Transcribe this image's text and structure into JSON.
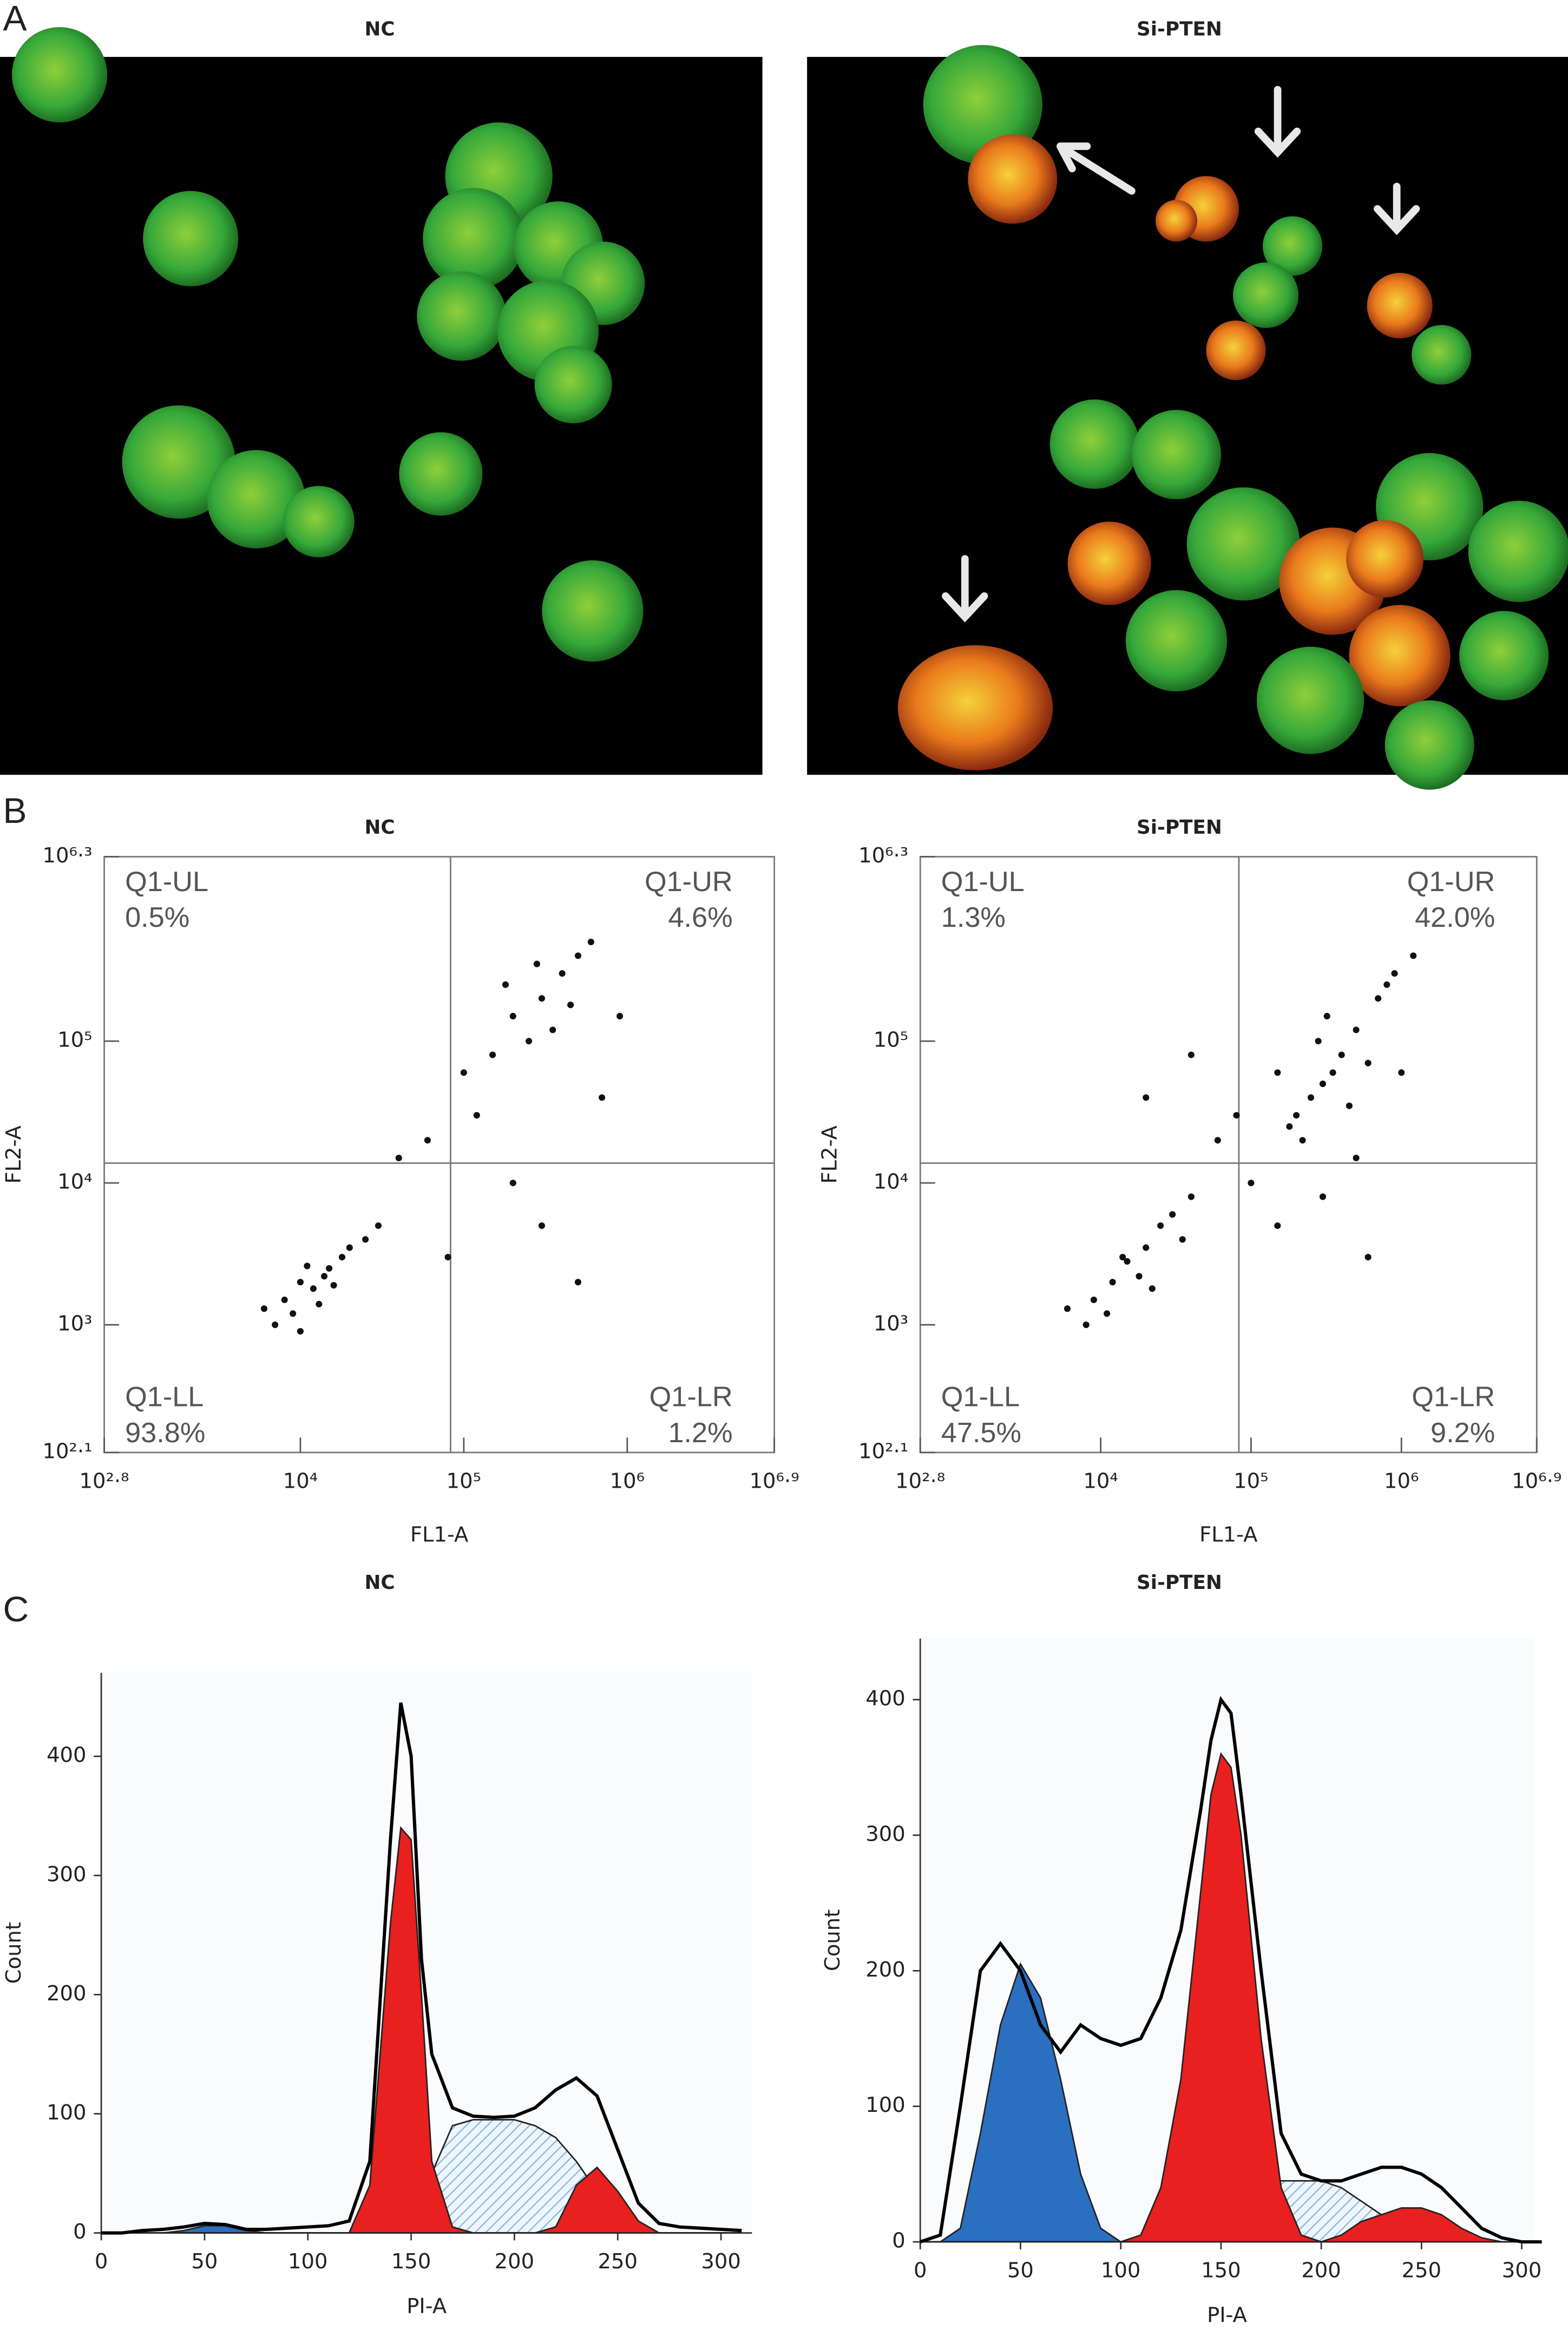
{
  "panel_labels": [
    "A",
    "B",
    "C"
  ],
  "panel_a_titles": [
    "NC",
    "Si-PTEN"
  ],
  "chart_data": [
    {
      "type": "scatter",
      "title": "NC",
      "x_label": "FL1-A",
      "y_label": "FL2-A",
      "log_scale": true,
      "color": "#111111",
      "xlim": [
        630.96,
        7943282
      ],
      "ylim": [
        125.89,
        1995262
      ],
      "xticks": [
        {
          "value": 630.96,
          "label": "10²·⁸"
        },
        {
          "value": 10000,
          "label": "10⁴"
        },
        {
          "value": 100000,
          "label": "10⁵"
        },
        {
          "value": 1000000,
          "label": "10⁶"
        },
        {
          "value": 7943282,
          "label": "10⁶·⁹"
        }
      ],
      "yticks": [
        {
          "value": 125.89,
          "label": "10²·¹"
        },
        {
          "value": 1000,
          "label": "10³"
        },
        {
          "value": 10000,
          "label": "10⁴"
        },
        {
          "value": 100000,
          "label": "10⁵"
        },
        {
          "value": 1995262,
          "label": "10⁶·³"
        }
      ],
      "gates": {
        "x": 83000,
        "y": 13800
      },
      "quadrants": {
        "names": [
          "Q1-UL",
          "Q1-UR",
          "Q1-LL",
          "Q1-LR"
        ],
        "values": [
          0.5,
          4.6,
          93.8,
          1.2
        ],
        "value_labels": [
          "0.5%",
          "4.6%",
          "93.8%",
          "1.2%"
        ]
      },
      "x": [
        8000,
        10000,
        12000,
        15000,
        9000,
        13000,
        11000,
        18000,
        7000,
        20000,
        14000,
        16000,
        6000,
        25000,
        10000,
        30000,
        200000,
        300000,
        400000,
        250000,
        500000,
        150000,
        350000,
        600000,
        180000,
        450000,
        100000,
        280000,
        60000,
        80000,
        300000,
        500000,
        40000,
        120000,
        700000,
        200000,
        900000
      ],
      "values": [
        1500,
        2000,
        1800,
        2500,
        1200,
        1400,
        2600,
        3000,
        1000,
        3500,
        2200,
        1900,
        1300,
        4000,
        900,
        5000,
        150000,
        200000,
        300000,
        100000,
        400000,
        80000,
        120000,
        500000,
        250000,
        180000,
        60000,
        350000,
        20000,
        3000,
        5000,
        2000,
        15000,
        30000,
        40000,
        10000,
        150000
      ]
    },
    {
      "type": "scatter",
      "title": "Si-PTEN",
      "x_label": "FL1-A",
      "y_label": "FL2-A",
      "log_scale": true,
      "color": "#111111",
      "xlim": [
        630.96,
        7943282
      ],
      "ylim": [
        125.89,
        1995262
      ],
      "xticks": [
        {
          "value": 630.96,
          "label": "10²·⁸"
        },
        {
          "value": 10000,
          "label": "10⁴"
        },
        {
          "value": 100000,
          "label": "10⁵"
        },
        {
          "value": 1000000,
          "label": "10⁶"
        },
        {
          "value": 7943282,
          "label": "10⁶·⁹"
        }
      ],
      "yticks": [
        {
          "value": 125.89,
          "label": "10²·¹"
        },
        {
          "value": 1000,
          "label": "10³"
        },
        {
          "value": 10000,
          "label": "10⁴"
        },
        {
          "value": 100000,
          "label": "10⁵"
        },
        {
          "value": 1995262,
          "label": "10⁶·³"
        }
      ],
      "gates": {
        "x": 83000,
        "y": 13800
      },
      "quadrants": {
        "names": [
          "Q1-UL",
          "Q1-UR",
          "Q1-LL",
          "Q1-LR"
        ],
        "values": [
          1.3,
          42.0,
          47.5,
          9.2
        ],
        "value_labels": [
          "1.3%",
          "42.0%",
          "47.5%",
          "9.2%"
        ]
      },
      "x": [
        9000,
        12000,
        15000,
        20000,
        8000,
        25000,
        30000,
        11000,
        18000,
        40000,
        6000,
        14000,
        35000,
        22000,
        200000,
        250000,
        300000,
        350000,
        180000,
        400000,
        500000,
        700000,
        900000,
        1200000,
        280000,
        150000,
        220000,
        450000,
        600000,
        320000,
        800000,
        60000,
        100000,
        300000,
        600000,
        40000,
        1000000,
        150000,
        80000,
        500000,
        20000
      ],
      "values": [
        1500,
        2000,
        2800,
        3500,
        1000,
        5000,
        6000,
        1200,
        2200,
        8000,
        1300,
        3000,
        4000,
        1800,
        30000,
        40000,
        50000,
        60000,
        25000,
        80000,
        120000,
        200000,
        300000,
        400000,
        100000,
        60000,
        20000,
        35000,
        70000,
        150000,
        250000,
        20000,
        10000,
        8000,
        3000,
        80000,
        60000,
        5000,
        30000,
        15000,
        40000
      ]
    },
    {
      "type": "histogram",
      "title": "NC",
      "x_label": "PI-A",
      "y_label": "Count",
      "xlim": [
        0,
        315
      ],
      "ylim": [
        0,
        470
      ],
      "xticks": [
        0,
        50,
        100,
        150,
        200,
        250,
        300
      ],
      "yticks": [
        0,
        100,
        200,
        300,
        400
      ],
      "x": [
        0,
        10,
        20,
        30,
        40,
        50,
        60,
        70,
        80,
        90,
        100,
        110,
        120,
        130,
        140,
        145,
        150,
        155,
        160,
        170,
        180,
        190,
        200,
        210,
        220,
        230,
        240,
        250,
        260,
        270,
        280,
        290,
        300,
        310
      ],
      "series": [
        {
          "kind": "hatch",
          "color": "#7fb2de",
          "values": [
            0,
            0,
            0,
            0,
            0,
            0,
            0,
            0,
            0,
            0,
            0,
            0,
            0,
            0,
            0,
            0,
            0,
            20,
            50,
            90,
            95,
            95,
            95,
            90,
            80,
            60,
            35,
            10,
            0,
            0,
            0,
            0,
            0,
            0
          ]
        },
        {
          "kind": "fill",
          "color": "#2a6fc0",
          "values": [
            0,
            0,
            0,
            0,
            2,
            6,
            6,
            2,
            0,
            0,
            0,
            0,
            0,
            0,
            0,
            0,
            0,
            0,
            0,
            0,
            0,
            0,
            0,
            0,
            0,
            0,
            0,
            0,
            0,
            0,
            0,
            0,
            0,
            0
          ]
        },
        {
          "kind": "fill",
          "color": "#e8201f",
          "values": [
            0,
            0,
            0,
            0,
            0,
            0,
            0,
            0,
            0,
            0,
            0,
            0,
            0,
            40,
            260,
            340,
            330,
            200,
            60,
            5,
            0,
            0,
            0,
            0,
            0,
            0,
            0,
            0,
            0,
            0,
            0,
            0,
            0,
            0
          ]
        },
        {
          "kind": "fill",
          "color": "#e8201f",
          "values": [
            0,
            0,
            0,
            0,
            0,
            0,
            0,
            0,
            0,
            0,
            0,
            0,
            0,
            0,
            0,
            0,
            0,
            0,
            0,
            0,
            0,
            0,
            0,
            0,
            5,
            40,
            55,
            35,
            10,
            0,
            0,
            0,
            0,
            0
          ]
        },
        {
          "kind": "line",
          "color": "#000000",
          "values": [
            0,
            0,
            2,
            3,
            5,
            8,
            7,
            3,
            3,
            4,
            5,
            6,
            10,
            60,
            330,
            445,
            400,
            230,
            150,
            105,
            98,
            97,
            98,
            105,
            120,
            130,
            115,
            70,
            25,
            8,
            5,
            4,
            3,
            2
          ]
        }
      ]
    },
    {
      "type": "histogram",
      "title": "Si-PTEN",
      "x_label": "PI-A",
      "y_label": "Count",
      "xlim": [
        0,
        306
      ],
      "ylim": [
        0,
        445
      ],
      "xticks": [
        0,
        50,
        100,
        150,
        200,
        250,
        300
      ],
      "yticks": [
        0,
        100,
        200,
        300,
        400
      ],
      "x": [
        0,
        10,
        20,
        30,
        40,
        50,
        60,
        70,
        80,
        90,
        100,
        110,
        120,
        130,
        140,
        145,
        150,
        155,
        160,
        170,
        180,
        190,
        200,
        210,
        220,
        230,
        240,
        250,
        260,
        270,
        280,
        290,
        300,
        310
      ],
      "series": [
        {
          "kind": "hatch",
          "color": "#7fb2de",
          "values": [
            0,
            0,
            0,
            0,
            0,
            0,
            0,
            0,
            0,
            0,
            0,
            0,
            0,
            0,
            0,
            0,
            0,
            0,
            10,
            30,
            45,
            45,
            45,
            40,
            30,
            20,
            12,
            5,
            0,
            0,
            0,
            0,
            0,
            0
          ]
        },
        {
          "kind": "fill",
          "color": "#2a6fc0",
          "values": [
            0,
            0,
            10,
            80,
            160,
            205,
            180,
            120,
            50,
            10,
            0,
            0,
            0,
            0,
            0,
            0,
            0,
            0,
            0,
            0,
            0,
            0,
            0,
            0,
            0,
            0,
            0,
            0,
            0,
            0,
            0,
            0,
            0,
            0
          ]
        },
        {
          "kind": "fill",
          "color": "#e8201f",
          "values": [
            0,
            0,
            0,
            0,
            0,
            0,
            0,
            0,
            0,
            0,
            0,
            5,
            40,
            120,
            260,
            330,
            360,
            350,
            300,
            150,
            40,
            5,
            0,
            0,
            0,
            0,
            0,
            0,
            0,
            0,
            0,
            0,
            0,
            0
          ]
        },
        {
          "kind": "fill",
          "color": "#e8201f",
          "values": [
            0,
            0,
            0,
            0,
            0,
            0,
            0,
            0,
            0,
            0,
            0,
            0,
            0,
            0,
            0,
            0,
            0,
            0,
            0,
            0,
            0,
            0,
            0,
            5,
            15,
            20,
            25,
            25,
            20,
            10,
            3,
            0,
            0,
            0
          ]
        },
        {
          "kind": "line",
          "color": "#000000",
          "values": [
            0,
            5,
            100,
            200,
            220,
            200,
            160,
            140,
            160,
            150,
            145,
            150,
            180,
            230,
            320,
            370,
            400,
            390,
            330,
            200,
            80,
            50,
            45,
            45,
            50,
            55,
            55,
            50,
            40,
            25,
            10,
            3,
            0,
            0
          ]
        }
      ]
    }
  ]
}
